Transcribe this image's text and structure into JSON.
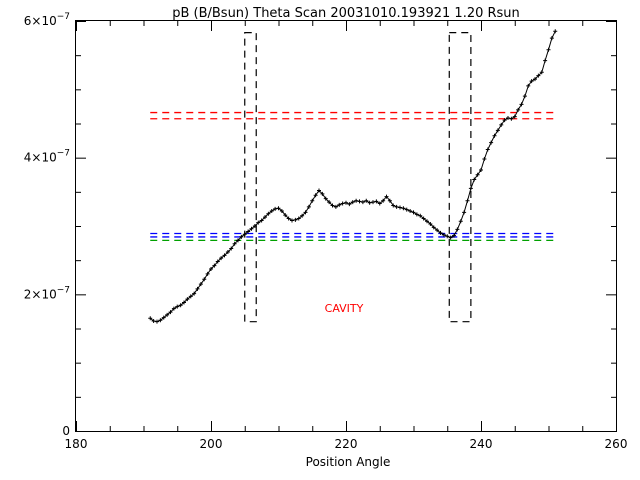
{
  "chart_data": {
    "type": "line",
    "title": "pB (B/Bsun) Theta Scan 20031010.193921 1.20 Rsun",
    "xlabel": "Position Angle",
    "ylabel": "",
    "xlim": [
      180,
      260
    ],
    "ylim": [
      0,
      6e-07
    ],
    "x_ticks": [
      {
        "value": 180,
        "label": "180"
      },
      {
        "value": 200,
        "label": "200"
      },
      {
        "value": 220,
        "label": "220"
      },
      {
        "value": 240,
        "label": "240"
      },
      {
        "value": 260,
        "label": "260"
      }
    ],
    "x_minor_step": 5,
    "y_ticks": [
      {
        "value": 0,
        "base": "0",
        "exp": ""
      },
      {
        "value": 2e-07,
        "base": "2×10",
        "exp": "−7"
      },
      {
        "value": 4e-07,
        "base": "4×10",
        "exp": "−7"
      },
      {
        "value": 6e-07,
        "base": "6×10",
        "exp": "−7"
      }
    ],
    "y_minor_step": 5e-08,
    "grid": false,
    "series": [
      {
        "style": "line-with-plus-markers",
        "color": "#000000",
        "x": [
          191.0,
          191.5,
          192.0,
          192.5,
          193.0,
          193.5,
          194.0,
          194.5,
          195.0,
          195.5,
          196.0,
          196.5,
          197.0,
          197.5,
          198.0,
          198.5,
          199.0,
          199.5,
          200.0,
          200.5,
          201.0,
          201.5,
          202.0,
          202.5,
          203.0,
          203.5,
          204.0,
          204.5,
          205.0,
          205.5,
          206.0,
          206.5,
          207.0,
          207.5,
          208.0,
          208.5,
          209.0,
          209.5,
          210.0,
          210.5,
          211.0,
          211.5,
          212.0,
          212.5,
          213.0,
          213.5,
          214.0,
          214.5,
          215.0,
          215.5,
          216.0,
          216.5,
          217.0,
          217.5,
          218.0,
          218.5,
          219.0,
          219.5,
          220.0,
          220.5,
          221.0,
          221.5,
          222.0,
          222.5,
          223.0,
          223.5,
          224.0,
          224.5,
          225.0,
          225.5,
          226.0,
          226.5,
          227.0,
          227.5,
          228.0,
          228.5,
          229.0,
          229.5,
          230.0,
          230.5,
          231.0,
          231.5,
          232.0,
          232.5,
          233.0,
          233.5,
          234.0,
          234.5,
          235.0,
          235.5,
          236.0,
          236.5,
          237.0,
          237.5,
          238.0,
          238.5,
          239.0,
          239.5,
          240.0,
          240.5,
          241.0,
          241.5,
          242.0,
          242.5,
          243.0,
          243.5,
          244.0,
          244.5,
          245.0,
          245.5,
          246.0,
          246.5,
          247.0,
          247.5,
          248.0,
          248.5,
          249.0,
          249.5,
          250.0,
          250.5,
          251.0
        ],
        "y": [
          1.65e-07,
          1.61e-07,
          1.6e-07,
          1.62e-07,
          1.66e-07,
          1.7e-07,
          1.74e-07,
          1.79e-07,
          1.82e-07,
          1.84e-07,
          1.88e-07,
          1.93e-07,
          1.97e-07,
          2.01e-07,
          2.08e-07,
          2.15e-07,
          2.22e-07,
          2.3e-07,
          2.37e-07,
          2.42e-07,
          2.48e-07,
          2.53e-07,
          2.57e-07,
          2.62e-07,
          2.67e-07,
          2.74e-07,
          2.79e-07,
          2.84e-07,
          2.88e-07,
          2.92e-07,
          2.96e-07,
          3e-07,
          3.05e-07,
          3.08e-07,
          3.13e-07,
          3.18e-07,
          3.22e-07,
          3.25e-07,
          3.26e-07,
          3.22e-07,
          3.16e-07,
          3.11e-07,
          3.08e-07,
          3.09e-07,
          3.11e-07,
          3.15e-07,
          3.2e-07,
          3.28e-07,
          3.37e-07,
          3.45e-07,
          3.52e-07,
          3.47e-07,
          3.4e-07,
          3.35e-07,
          3.3e-07,
          3.28e-07,
          3.31e-07,
          3.33e-07,
          3.34e-07,
          3.32e-07,
          3.35e-07,
          3.37e-07,
          3.36e-07,
          3.35e-07,
          3.37e-07,
          3.34e-07,
          3.35e-07,
          3.36e-07,
          3.33e-07,
          3.37e-07,
          3.43e-07,
          3.37e-07,
          3.3e-07,
          3.28e-07,
          3.27e-07,
          3.26e-07,
          3.24e-07,
          3.22e-07,
          3.2e-07,
          3.17e-07,
          3.15e-07,
          3.11e-07,
          3.07e-07,
          3.03e-07,
          2.98e-07,
          2.94e-07,
          2.9e-07,
          2.87e-07,
          2.85e-07,
          2.83e-07,
          2.86e-07,
          2.95e-07,
          3.07e-07,
          3.2e-07,
          3.37e-07,
          3.55e-07,
          3.68e-07,
          3.75e-07,
          3.82e-07,
          3.98e-07,
          4.12e-07,
          4.22e-07,
          4.32e-07,
          4.4e-07,
          4.48e-07,
          4.55e-07,
          4.58e-07,
          4.57e-07,
          4.6e-07,
          4.7e-07,
          4.78e-07,
          4.9e-07,
          5.05e-07,
          5.12e-07,
          5.15e-07,
          5.2e-07,
          5.25e-07,
          5.42e-07,
          5.58e-07,
          5.75e-07,
          5.85e-07
        ]
      }
    ],
    "reference_lines": [
      {
        "color": "#ff0000",
        "y": 4.66e-07,
        "x_range": [
          191,
          251
        ],
        "style": "dashed"
      },
      {
        "color": "#ff0000",
        "y": 4.57e-07,
        "x_range": [
          191,
          251
        ],
        "style": "dashed"
      },
      {
        "color": "#0000ff",
        "y": 2.89e-07,
        "x_range": [
          191,
          251
        ],
        "style": "dashed"
      },
      {
        "color": "#0000ff",
        "y": 2.84e-07,
        "x_range": [
          191,
          251
        ],
        "style": "dashed"
      },
      {
        "color": "#00a000",
        "y": 2.79e-07,
        "x_range": [
          191,
          251
        ],
        "style": "dashed"
      }
    ],
    "boxes": [
      {
        "color": "#000000",
        "x_range": [
          205.0,
          206.7
        ],
        "y_range": [
          1.6e-07,
          5.83e-07
        ],
        "style": "dashed"
      },
      {
        "color": "#000000",
        "x_range": [
          235.3,
          238.5
        ],
        "y_range": [
          1.6e-07,
          5.83e-07
        ],
        "style": "dashed"
      }
    ],
    "annotations": [
      {
        "text": "CAVITY",
        "x": 220,
        "y": 1.8e-07,
        "color": "#ff0000"
      }
    ]
  }
}
